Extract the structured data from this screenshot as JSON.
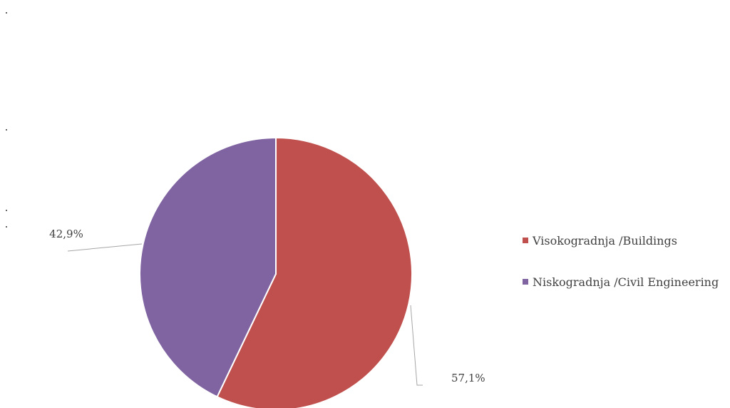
{
  "chart_data": {
    "type": "pie",
    "title": "",
    "slices": [
      {
        "name": "Visokogradnja /Buildings",
        "value": 57.1,
        "label": "57,1%",
        "color": "#C0504D"
      },
      {
        "name": "Niskogradnja /Civil Engineering",
        "value": 42.9,
        "label": "42,9%",
        "color": "#8064A2"
      }
    ],
    "legend_position": "right"
  }
}
